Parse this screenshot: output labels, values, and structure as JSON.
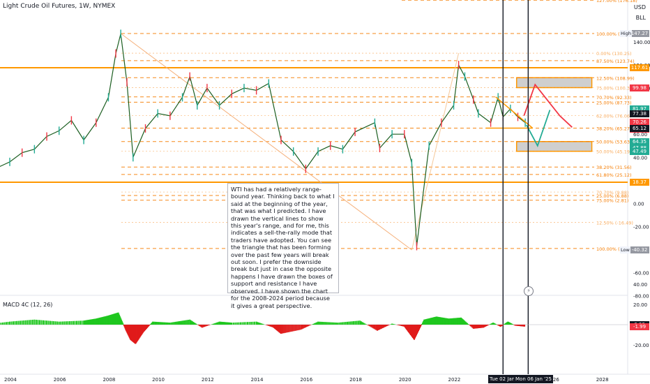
{
  "header": {
    "title": "Light Crude Oil Futures, 1W, NYMEX",
    "currency": "USD",
    "unit": "BLL"
  },
  "annotation": {
    "text": "WTI has had a relatively range-bound year. Thinking back to what I said at the beginning of the year, that was what I predicted. I have drawn the vertical lines to show this year's range, and for me, this indicates a sell-the-rally mode that traders have adopted. You can see the triangle that has been forming over the past few years will break out soon. I prefer the downside break but just in case the opposite happens I have drawn the boxes of support and resistance I have observed. I have shown the chart for the 2008-2024 period because it gives a great perspective."
  },
  "marker_glyph": "⚡",
  "date_tags": [
    "Tue 02 Jan",
    "Mon 06 Jan '25"
  ],
  "chart_data": [
    {
      "type": "line",
      "title": "Light Crude Oil Futures, 1W, NYMEX",
      "y_ticks": [
        140.0,
        120.0,
        100.0,
        80.0,
        60.0,
        40.0,
        20.0,
        0.0,
        -20.0,
        -40.0,
        -60.0,
        -80.0
      ],
      "x_ticks": [
        "2004",
        "2006",
        "2008",
        "2010",
        "2012",
        "2014",
        "2016",
        "2018",
        "2020",
        "2022",
        "2024",
        "2026",
        "2028"
      ],
      "series": [
        {
          "x": [
            2003.0,
            2003.5,
            2004.0,
            2004.5,
            2005.0,
            2005.5,
            2006.0,
            2006.5,
            2007.0,
            2007.5,
            2008.0,
            2008.3,
            2008.5,
            2008.75,
            2009.0,
            2009.5,
            2010.0,
            2010.5,
            2011.0,
            2011.3,
            2011.6,
            2012.0,
            2012.5,
            2013.0,
            2013.5,
            2014.0,
            2014.5,
            2015.0,
            2015.5,
            2016.0,
            2016.5,
            2017.0,
            2017.5,
            2018.0,
            2018.8,
            2019.0,
            2019.5,
            2020.0,
            2020.3,
            2020.5,
            2021.0,
            2021.5,
            2022.0,
            2022.2,
            2022.45,
            2022.8,
            2023.0,
            2023.5,
            2023.8,
            2024.0,
            2024.3,
            2024.6,
            2024.9
          ],
          "y": [
            28,
            31,
            36,
            44,
            47,
            58,
            63,
            72,
            55,
            70,
            92,
            130,
            147,
            105,
            40,
            65,
            78,
            76,
            92,
            110,
            85,
            100,
            85,
            95,
            100,
            98,
            104,
            55,
            45,
            30,
            45,
            50,
            47,
            62,
            70,
            48,
            60,
            60,
            35,
            -37,
            50,
            70,
            85,
            120,
            110,
            90,
            78,
            70,
            92,
            75,
            82,
            75,
            70
          ]
        }
      ]
    },
    {
      "type": "bar",
      "title": "MACD 4C (12, 26)",
      "y_ticks": [
        40.0,
        20.0,
        -20.0
      ],
      "x": [
        2003.0,
        2004.0,
        2005.0,
        2006.0,
        2007.0,
        2007.5,
        2008.0,
        2008.4,
        2008.7,
        2008.9,
        2009.1,
        2009.4,
        2009.8,
        2010.5,
        2011.3,
        2011.8,
        2012.5,
        2013.0,
        2014.0,
        2014.7,
        2015.0,
        2015.8,
        2016.5,
        2017.3,
        2018.2,
        2018.9,
        2019.5,
        2020.0,
        2020.4,
        2020.8,
        2021.3,
        2021.8,
        2022.3,
        2022.8,
        2023.2,
        2023.6,
        2023.9,
        2024.2,
        2024.5,
        2024.9
      ],
      "values": [
        0,
        3,
        5,
        3,
        4,
        6,
        9,
        12,
        -5,
        -15,
        -19,
        -8,
        3,
        2,
        5,
        -3,
        3,
        2,
        3,
        -3,
        -9,
        -5,
        3,
        2,
        4,
        -6,
        1,
        -2,
        -15,
        5,
        8,
        6,
        7,
        -4,
        -3,
        2,
        -2,
        3,
        -1,
        -1.99
      ]
    }
  ],
  "price_labels": {
    "right_axis": [
      "147.27",
      "117.61",
      "100.36",
      "99.98",
      "81.97",
      "77.38",
      "70.26",
      "2d 10h",
      "65.12",
      "64.35",
      "47.88",
      "47.49",
      "18.37",
      "-40.32",
      "0.00",
      "-1.99"
    ],
    "high_label": "High",
    "low_label": "Low"
  },
  "fib_levels": [
    {
      "label": "127.00% (176.18)",
      "price": 176.18
    },
    {
      "label": "100.00% (147.27)",
      "price": 147.27
    },
    {
      "label": "0.00% (130.25)",
      "price": 130.25
    },
    {
      "label": "87.50% (123.74)",
      "price": 123.74
    },
    {
      "label": "12.50% (108.99)",
      "price": 108.99
    },
    {
      "label": "75.00% (100.36)",
      "price": 100.36
    },
    {
      "label": "70.70% (92.33)",
      "price": 92.33
    },
    {
      "label": "25.00% (87.73)",
      "price": 87.73
    },
    {
      "label": "62.00% (76.06)",
      "price": 76.06
    },
    {
      "label": "38.20% (65.27)",
      "price": 65.27
    },
    {
      "label": "50.00% (53.63)",
      "price": 53.63
    },
    {
      "label": "50.00% (45.19)",
      "price": 45.19
    },
    {
      "label": "38.20% (31.56)",
      "price": 31.56
    },
    {
      "label": "61.80% (25.12)",
      "price": 25.12
    },
    {
      "label": "70.70% (9.88)",
      "price": 9.88
    },
    {
      "label": "25.00% (6.88)",
      "price": 6.88
    },
    {
      "label": "75.00% (2.81)",
      "price": 2.81
    },
    {
      "label": "12.50% (-16.49)",
      "price": -16.49
    },
    {
      "label": "100.00% (-39.",
      "price": -39.0
    }
  ],
  "colors": {
    "fib_orange": "#f57c00",
    "sr_line": "#ff9800",
    "bull": "#22ab94",
    "bear": "#f23645",
    "macd_pos": "#1fc71f",
    "macd_neg": "#e01b1b",
    "box_fill": "#cfcfcf"
  }
}
